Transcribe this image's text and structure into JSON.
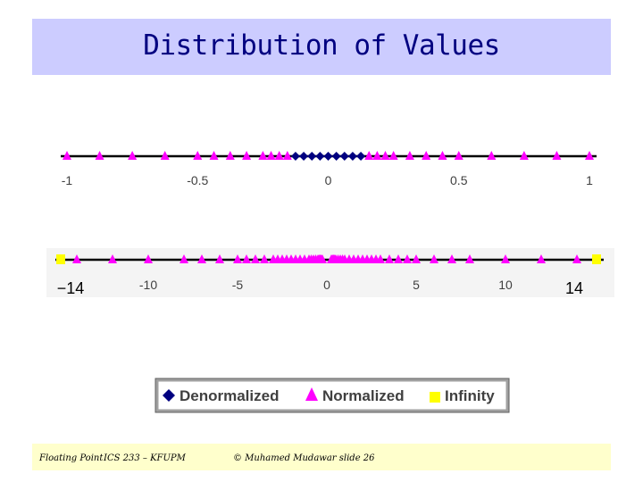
{
  "slide": {
    "title": "Distribution of Values",
    "footer": {
      "left": "Floating Point",
      "course": "ICS 233 – KFUPM",
      "credit": "© Muhamed Mudawar slide 26"
    }
  },
  "colors": {
    "title_bg": "#ccccff",
    "title_text": "#000080",
    "denormalized": "#000080",
    "normalized": "#ff00ff",
    "infinity": "#ffff00",
    "axis": "#000000",
    "footer_bg": "#ffffcc"
  },
  "chart_data": [
    {
      "type": "scatter",
      "title": "",
      "xlim": [
        -1,
        1
      ],
      "tick_labels": [
        "-1",
        "-0.5",
        "0",
        "0.5",
        "1"
      ],
      "tick_values": [
        -1,
        -0.5,
        0,
        0.5,
        1
      ],
      "series": [
        {
          "name": "Normalized",
          "marker": "triangle",
          "x": [
            -1,
            -0.875,
            -0.75,
            -0.625,
            -0.5,
            -0.4375,
            -0.375,
            -0.3125,
            -0.25,
            -0.21875,
            -0.1875,
            -0.15625,
            0.15625,
            0.1875,
            0.21875,
            0.25,
            0.3125,
            0.375,
            0.4375,
            0.5,
            0.625,
            0.75,
            0.875,
            1
          ]
        },
        {
          "name": "Denormalized",
          "marker": "diamond",
          "x": [
            -0.125,
            -0.09375,
            -0.0625,
            -0.03125,
            0,
            0.03125,
            0.0625,
            0.09375,
            0.125
          ]
        }
      ]
    },
    {
      "type": "scatter",
      "title": "",
      "xlim": [
        -14,
        14
      ],
      "tick_labels": [
        "-10",
        "-5",
        "0",
        "5",
        "10"
      ],
      "tick_values": [
        -10,
        -5,
        0,
        5,
        10
      ],
      "end_labels": [
        "−14",
        "14"
      ],
      "series": [
        {
          "name": "Normalized",
          "marker": "triangle",
          "x": [
            -14,
            -12,
            -10,
            -8,
            -7,
            -6,
            -5,
            -4.5,
            -4,
            -3.5,
            -3,
            -2.75,
            -2.5,
            -2.25,
            -2,
            -1.75,
            -1.5,
            -1.25,
            -1,
            -0.875,
            -0.75,
            -0.625,
            -0.5,
            -0.4375,
            -0.375,
            -0.3125,
            -0.25,
            0.25,
            0.3125,
            0.375,
            0.4375,
            0.5,
            0.625,
            0.75,
            0.875,
            1,
            1.25,
            1.5,
            1.75,
            2,
            2.25,
            2.5,
            2.75,
            3,
            3.5,
            4,
            4.5,
            5,
            6,
            7,
            8,
            10,
            12,
            14
          ]
        },
        {
          "name": "Infinity",
          "marker": "square",
          "x": [
            -15,
            15
          ]
        }
      ]
    }
  ],
  "legend": {
    "items": [
      {
        "label": "Denormalized",
        "marker": "diamond"
      },
      {
        "label": "Normalized",
        "marker": "triangle"
      },
      {
        "label": "Infinity",
        "marker": "square"
      }
    ]
  }
}
